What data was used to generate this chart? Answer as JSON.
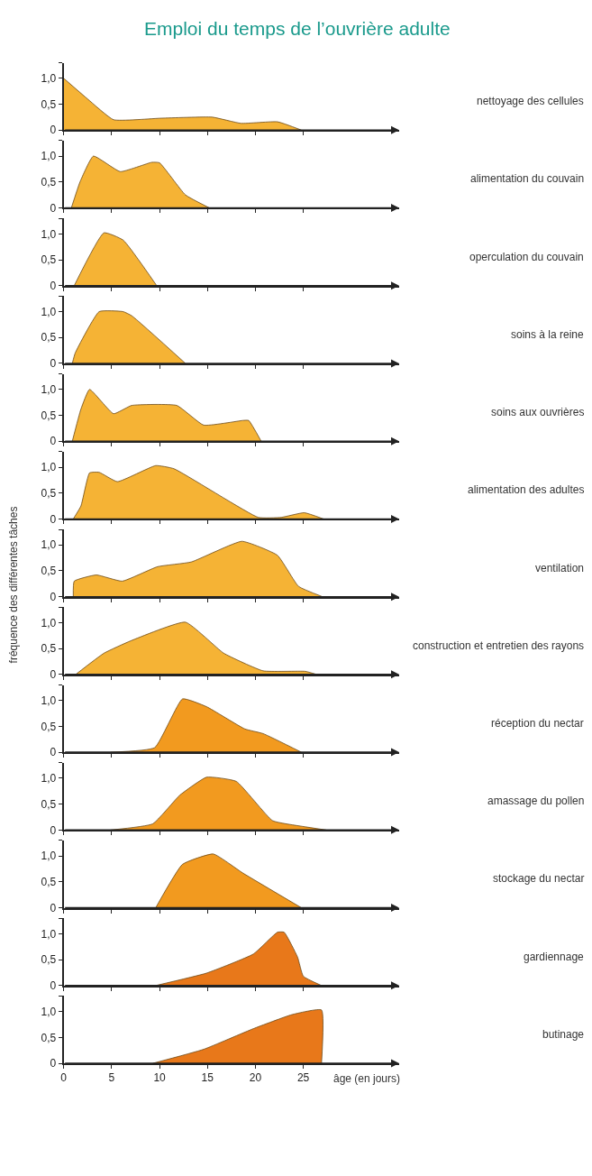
{
  "chart_data": [
    {
      "type": "area",
      "title": "Emploi du temps de l’ouvrière adulte",
      "annotations": [
        "nettoyage des cellules"
      ],
      "x": [
        0,
        2.5,
        5.2,
        10.2,
        15.5,
        18.5,
        22.3,
        24.8
      ],
      "values": [
        1.0,
        0.6,
        0.2,
        0.23,
        0.25,
        0.13,
        0.16,
        0
      ],
      "color": "#f5b335",
      "xlim": [
        0,
        35
      ],
      "xticks": [
        0,
        5,
        10,
        15,
        20,
        25
      ],
      "ylim": [
        0,
        1.3
      ],
      "yticks": [
        0,
        {
          "value": 0.5,
          "label": "0,5"
        },
        {
          "value": 1,
          "label": "1,0"
        },
        {
          "value": 1.3,
          "label": null
        }
      ],
      "tick_labels": "y"
    },
    {
      "type": "area",
      "annotations": [
        "alimentation du couvain"
      ],
      "x": [
        0.8,
        1.7,
        3.1,
        5.9,
        9.2,
        10,
        12.7,
        15.2
      ],
      "values": [
        0,
        0.5,
        1.0,
        0.7,
        0.88,
        0.87,
        0.25,
        0
      ],
      "color": "#f5b335",
      "xlim": [
        0,
        35
      ],
      "xticks": [
        0,
        5,
        10,
        15,
        20,
        25
      ],
      "ylim": [
        0,
        1.3
      ],
      "yticks": [
        0,
        {
          "value": 0.5,
          "label": "0,5"
        },
        {
          "value": 1,
          "label": "1,0"
        },
        {
          "value": 1.3,
          "label": null
        }
      ],
      "tick_labels": "y"
    },
    {
      "type": "area",
      "annotations": [
        "operculation du couvain"
      ],
      "x": [
        1.1,
        4.2,
        6.2,
        9.7
      ],
      "values": [
        0,
        1.02,
        0.88,
        0
      ],
      "color": "#f5b335",
      "xlim": [
        0,
        35
      ],
      "xticks": [
        0,
        5,
        10,
        15,
        20,
        25
      ],
      "ylim": [
        0,
        1.3
      ],
      "yticks": [
        0,
        {
          "value": 0.5,
          "label": "0,5"
        },
        {
          "value": 1,
          "label": "1,0"
        },
        {
          "value": 1.3,
          "label": null
        }
      ],
      "tick_labels": "y"
    },
    {
      "type": "area",
      "annotations": [
        "soins à la reine"
      ],
      "x": [
        0.9,
        1.2,
        3.7,
        6.2,
        7.1,
        12.7
      ],
      "values": [
        0,
        0.2,
        1.0,
        1.0,
        0.92,
        0
      ],
      "color": "#f5b335",
      "xlim": [
        0,
        35
      ],
      "xticks": [
        0,
        5,
        10,
        15,
        20,
        25
      ],
      "ylim": [
        0,
        1.3
      ],
      "yticks": [
        0,
        {
          "value": 0.5,
          "label": "0,5"
        },
        {
          "value": 1,
          "label": "1,0"
        },
        {
          "value": 1.3,
          "label": null
        }
      ],
      "tick_labels": "y"
    },
    {
      "type": "area",
      "annotations": [
        "soins aux ouvrières"
      ],
      "x": [
        0.9,
        1.8,
        2.7,
        5.2,
        7.1,
        11.8,
        14.6,
        18.7,
        19.3,
        20.6
      ],
      "values": [
        0,
        0.62,
        1.0,
        0.53,
        0.69,
        0.69,
        0.31,
        0.4,
        0.4,
        0
      ],
      "color": "#f5b335",
      "xlim": [
        0,
        35
      ],
      "xticks": [
        0,
        5,
        10,
        15,
        20,
        25
      ],
      "ylim": [
        0,
        1.3
      ],
      "yticks": [
        0,
        {
          "value": 0.5,
          "label": "0,5"
        },
        {
          "value": 1,
          "label": "1,0"
        },
        {
          "value": 1.3,
          "label": null
        }
      ],
      "tick_labels": "y"
    },
    {
      "type": "area",
      "annotations": [
        "alimentation des adultes"
      ],
      "x": [
        1,
        1.8,
        2.7,
        3.7,
        5.6,
        9.6,
        11.5,
        20.3,
        22.7,
        25.1,
        27.1
      ],
      "values": [
        0,
        0.25,
        0.89,
        0.9,
        0.72,
        1.03,
        0.97,
        0.03,
        0.03,
        0.12,
        0
      ],
      "color": "#f5b335",
      "xlim": [
        0,
        35
      ],
      "xticks": [
        0,
        5,
        10,
        15,
        20,
        25
      ],
      "ylim": [
        0,
        1.3
      ],
      "yticks": [
        0,
        {
          "value": 0.5,
          "label": "0,5"
        },
        {
          "value": 1,
          "label": "1,0"
        },
        {
          "value": 1.3,
          "label": null
        }
      ],
      "tick_labels": "y"
    },
    {
      "type": "area",
      "ylabel": "fréquence des différentes tâches",
      "annotations": [
        "ventilation"
      ],
      "x": [
        1,
        1.1,
        3.4,
        6.1,
        9.8,
        13.3,
        18.6,
        22.3,
        24.5,
        27
      ],
      "values": [
        0,
        0.3,
        0.42,
        0.3,
        0.58,
        0.67,
        1.07,
        0.8,
        0.2,
        0
      ],
      "color": "#f5b335",
      "xlim": [
        0,
        35
      ],
      "xticks": [
        0,
        5,
        10,
        15,
        20,
        25
      ],
      "ylim": [
        0,
        1.3
      ],
      "yticks": [
        0,
        {
          "value": 0.5,
          "label": "0,5"
        },
        {
          "value": 1,
          "label": "1,0"
        },
        {
          "value": 1.3,
          "label": null
        }
      ],
      "tick_labels": "y"
    },
    {
      "type": "area",
      "annotations": [
        "construction et entretien des rayons"
      ],
      "x": [
        1.25,
        4.2,
        7,
        12.7,
        16.7,
        20.8,
        25.2,
        26.4
      ],
      "values": [
        0,
        0.41,
        0.65,
        1.01,
        0.41,
        0.07,
        0.06,
        0
      ],
      "color": "#f5b335",
      "xlim": [
        0,
        35
      ],
      "xticks": [
        0,
        5,
        10,
        15,
        20,
        25
      ],
      "ylim": [
        0,
        1.3
      ],
      "yticks": [
        0,
        {
          "value": 0.5,
          "label": "0,5"
        },
        {
          "value": 1,
          "label": "1,0"
        },
        {
          "value": 1.3,
          "label": null
        }
      ],
      "tick_labels": "y"
    },
    {
      "type": "area",
      "annotations": [
        "réception du nectar"
      ],
      "x": [
        4.9,
        9.5,
        12.4,
        14.9,
        18.9,
        20.8,
        24.8
      ],
      "values": [
        0,
        0.09,
        1.03,
        0.88,
        0.45,
        0.36,
        0
      ],
      "color": "#f29a1f",
      "xlim": [
        0,
        35
      ],
      "xticks": [
        0,
        5,
        10,
        15,
        20,
        25
      ],
      "ylim": [
        0,
        1.3
      ],
      "yticks": [
        0,
        {
          "value": 0.5,
          "label": "0,5"
        },
        {
          "value": 1,
          "label": "1,0"
        },
        {
          "value": 1.3,
          "label": null
        }
      ],
      "tick_labels": "y"
    },
    {
      "type": "area",
      "annotations": [
        "amassage du pollen"
      ],
      "x": [
        4.9,
        9.3,
        12.1,
        14.9,
        18,
        21.8,
        24.9,
        27.4
      ],
      "values": [
        0,
        0.12,
        0.67,
        1.02,
        0.94,
        0.18,
        0.07,
        0
      ],
      "color": "#f29a1f",
      "xlim": [
        0,
        35
      ],
      "xticks": [
        0,
        5,
        10,
        15,
        20,
        25
      ],
      "ylim": [
        0,
        1.3
      ],
      "yticks": [
        0,
        {
          "value": 0.5,
          "label": "0,5"
        },
        {
          "value": 1,
          "label": "1,0"
        },
        {
          "value": 1.3,
          "label": null
        }
      ],
      "tick_labels": "y"
    },
    {
      "type": "area",
      "annotations": [
        "stockage du nectar"
      ],
      "x": [
        9.6,
        12.4,
        15.6,
        18.7,
        24.8
      ],
      "values": [
        0,
        0.84,
        1.04,
        0.67,
        0
      ],
      "color": "#f29a1f",
      "xlim": [
        0,
        35
      ],
      "xticks": [
        0,
        5,
        10,
        15,
        20,
        25
      ],
      "ylim": [
        0,
        1.3
      ],
      "yticks": [
        0,
        {
          "value": 0.5,
          "label": "0,5"
        },
        {
          "value": 1,
          "label": "1,0"
        },
        {
          "value": 1.3,
          "label": null
        }
      ],
      "tick_labels": "y"
    },
    {
      "type": "area",
      "annotations": [
        "gardiennage"
      ],
      "x": [
        9.6,
        14.9,
        19.8,
        22.3,
        23,
        24.4,
        25,
        26.9
      ],
      "values": [
        0,
        0.24,
        0.61,
        1.03,
        1.03,
        0.55,
        0.18,
        0
      ],
      "color": "#e8781a",
      "xlim": [
        0,
        35
      ],
      "xticks": [
        0,
        5,
        10,
        15,
        20,
        25
      ],
      "ylim": [
        0,
        1.3
      ],
      "yticks": [
        0,
        {
          "value": 0.5,
          "label": "0,5"
        },
        {
          "value": 1,
          "label": "1,0"
        },
        {
          "value": 1.3,
          "label": null
        }
      ],
      "tick_labels": "y"
    },
    {
      "type": "area",
      "xlabel": "âge (en jours)",
      "annotations": [
        "butinage"
      ],
      "x": [
        9.3,
        14.6,
        19.8,
        23.8,
        26.9,
        26.9
      ],
      "values": [
        0,
        0.27,
        0.67,
        0.94,
        1.03,
        0
      ],
      "color": "#e8781a",
      "xlim": [
        0,
        35
      ],
      "xticks": [
        0,
        5,
        10,
        15,
        20,
        25
      ],
      "ylim": [
        0,
        1.3
      ],
      "yticks": [
        0,
        {
          "value": 0.5,
          "label": "0,5"
        },
        {
          "value": 1,
          "label": "1,0"
        },
        {
          "value": 1.3,
          "label": null
        }
      ]
    }
  ]
}
